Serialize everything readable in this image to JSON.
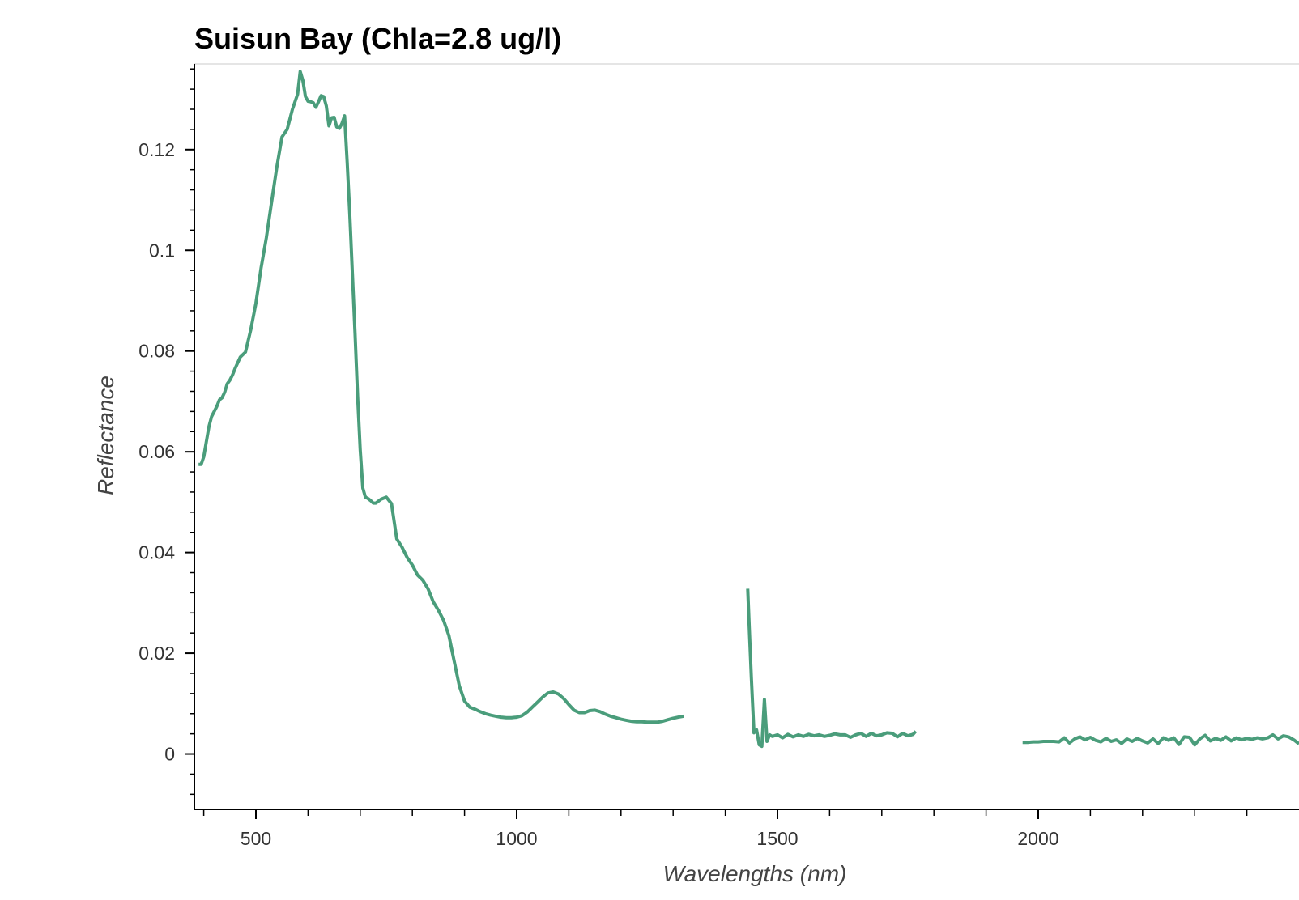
{
  "chart_data": {
    "type": "line",
    "title": "Suisun Bay (Chla=2.8 ug/l)",
    "xlabel": "Wavelengths (nm)",
    "ylabel": "Reflectance",
    "xlim": [
      382,
      2500
    ],
    "ylim": [
      -0.011,
      0.137
    ],
    "x_ticks": [
      500,
      1000,
      1500,
      2000
    ],
    "x_tick_labels": [
      "500",
      "1000",
      "1500",
      "2000"
    ],
    "x_minor_step": 100,
    "y_ticks": [
      0,
      0.02,
      0.04,
      0.06,
      0.08,
      0.1,
      0.12
    ],
    "y_tick_labels": [
      "0",
      "0.02",
      "0.04",
      "0.06",
      "0.08",
      "0.1",
      "0.12"
    ],
    "y_minor_step": 0.004,
    "grid": false,
    "legend": "none",
    "line_color": "#4a9d7b",
    "segments": [
      {
        "x": [
          390,
          395,
          400,
          405,
          410,
          415,
          420,
          425,
          430,
          435,
          440,
          445,
          450,
          455,
          460,
          470,
          480,
          490,
          500,
          510,
          520,
          530,
          540,
          550,
          560,
          570,
          580,
          585,
          590,
          595,
          600,
          605,
          610,
          615,
          620,
          625,
          630,
          635,
          640,
          645,
          650,
          655,
          660,
          665,
          670,
          675,
          680,
          685,
          690,
          695,
          700,
          705,
          710,
          715,
          720,
          725,
          730,
          740,
          750,
          760,
          770,
          780,
          790,
          800,
          810,
          820,
          830,
          840,
          850,
          860,
          870,
          880,
          890,
          900,
          910,
          920,
          930,
          940,
          950,
          960,
          970,
          980,
          990,
          1000,
          1010,
          1020,
          1030,
          1040,
          1050,
          1060,
          1070,
          1080,
          1090,
          1100,
          1110,
          1120,
          1130,
          1140,
          1150,
          1160,
          1170,
          1180,
          1190,
          1200,
          1210,
          1220,
          1230,
          1240,
          1250,
          1260,
          1270,
          1280,
          1290,
          1300,
          1310,
          1320
        ],
        "y": [
          0.0575,
          0.0575,
          0.059,
          0.062,
          0.065,
          0.067,
          0.068,
          0.069,
          0.0703,
          0.0707,
          0.0718,
          0.0735,
          0.0742,
          0.0752,
          0.0765,
          0.0788,
          0.0798,
          0.0842,
          0.0895,
          0.0965,
          0.1025,
          0.1095,
          0.1165,
          0.1225,
          0.124,
          0.128,
          0.131,
          0.1355,
          0.1337,
          0.1305,
          0.1296,
          0.1295,
          0.1293,
          0.1284,
          0.1295,
          0.1307,
          0.1305,
          0.1287,
          0.1247,
          0.1263,
          0.1264,
          0.1245,
          0.1242,
          0.1252,
          0.1267,
          0.1175,
          0.1072,
          0.0955,
          0.0835,
          0.071,
          0.0604,
          0.0528,
          0.051,
          0.0507,
          0.0503,
          0.0498,
          0.0498,
          0.0506,
          0.051,
          0.0497,
          0.0427,
          0.0411,
          0.039,
          0.0375,
          0.0355,
          0.0345,
          0.0328,
          0.0302,
          0.0285,
          0.0265,
          0.0235,
          0.0185,
          0.0135,
          0.0105,
          0.0093,
          0.0089,
          0.0084,
          0.008,
          0.0077,
          0.0075,
          0.0073,
          0.0072,
          0.0072,
          0.0073,
          0.0076,
          0.0083,
          0.0093,
          0.0103,
          0.0113,
          0.0121,
          0.0123,
          0.0119,
          0.011,
          0.0098,
          0.0087,
          0.0082,
          0.0082,
          0.0086,
          0.0087,
          0.0084,
          0.0079,
          0.0075,
          0.0072,
          0.0069,
          0.0067,
          0.0065,
          0.0064,
          0.0064,
          0.0063,
          0.0063,
          0.0063,
          0.0065,
          0.0068,
          0.0071,
          0.0073,
          0.0075
        ]
      },
      {
        "x": [
          1443,
          1446,
          1450,
          1455,
          1460,
          1465,
          1470,
          1475,
          1480,
          1485,
          1490,
          1500,
          1510,
          1520,
          1530,
          1540,
          1550,
          1560,
          1570,
          1580,
          1590,
          1600,
          1610,
          1620,
          1630,
          1640,
          1650,
          1660,
          1670,
          1680,
          1690,
          1700,
          1710,
          1720,
          1730,
          1740,
          1750,
          1760,
          1765
        ],
        "y": [
          0.0328,
          0.025,
          0.015,
          0.0042,
          0.0048,
          0.0018,
          0.0015,
          0.0108,
          0.0025,
          0.0038,
          0.0035,
          0.0038,
          0.0032,
          0.0039,
          0.0034,
          0.0038,
          0.0035,
          0.0039,
          0.0036,
          0.0038,
          0.0035,
          0.0037,
          0.004,
          0.0038,
          0.0038,
          0.0033,
          0.0038,
          0.0041,
          0.0035,
          0.0041,
          0.0036,
          0.0038,
          0.0042,
          0.0041,
          0.0034,
          0.0041,
          0.0036,
          0.0039,
          0.0045
        ]
      },
      {
        "x": [
          1970,
          1980,
          1990,
          2000,
          2010,
          2020,
          2030,
          2040,
          2050,
          2060,
          2070,
          2080,
          2090,
          2100,
          2110,
          2120,
          2130,
          2140,
          2150,
          2160,
          2170,
          2180,
          2190,
          2200,
          2210,
          2220,
          2230,
          2240,
          2250,
          2260,
          2270,
          2280,
          2290,
          2300,
          2310,
          2320,
          2330,
          2340,
          2350,
          2360,
          2370,
          2380,
          2390,
          2400,
          2410,
          2420,
          2430,
          2440,
          2450,
          2460,
          2470,
          2480,
          2490,
          2500
        ],
        "y": [
          0.0023,
          0.0023,
          0.0024,
          0.0024,
          0.0025,
          0.0025,
          0.0025,
          0.0024,
          0.0032,
          0.0022,
          0.003,
          0.0034,
          0.0028,
          0.0033,
          0.0027,
          0.0024,
          0.0031,
          0.0025,
          0.0028,
          0.0021,
          0.003,
          0.0025,
          0.0031,
          0.0026,
          0.0022,
          0.003,
          0.0021,
          0.0032,
          0.0027,
          0.0032,
          0.0019,
          0.0034,
          0.0033,
          0.0018,
          0.003,
          0.0037,
          0.0026,
          0.0031,
          0.0027,
          0.0034,
          0.0026,
          0.0032,
          0.0028,
          0.0031,
          0.0029,
          0.0032,
          0.003,
          0.0032,
          0.0038,
          0.003,
          0.0036,
          0.0034,
          0.0028,
          0.002
        ]
      }
    ]
  }
}
